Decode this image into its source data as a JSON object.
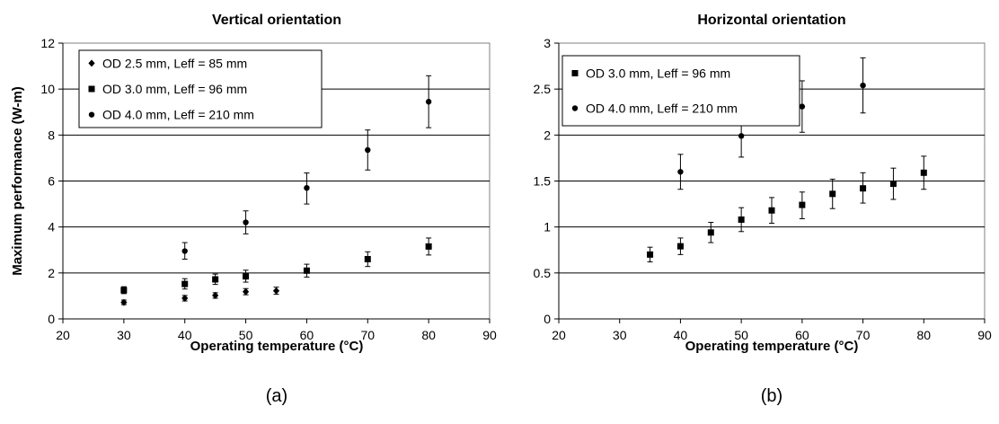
{
  "chart_data": [
    {
      "type": "scatter",
      "title": "Vertical orientation",
      "xlabel": "Operating temperature (°C)",
      "ylabel": "Maximum performance (W-m)",
      "panel_label": "(a)",
      "xlim": [
        20,
        90
      ],
      "ylim": [
        0,
        12
      ],
      "xticks": [
        "20",
        "30",
        "40",
        "50",
        "60",
        "70",
        "80",
        "90"
      ],
      "yticks": [
        "0",
        "2",
        "4",
        "6",
        "8",
        "10",
        "12"
      ],
      "grid": "horizontal",
      "legend_position": "top-left",
      "series": [
        {
          "name": "OD 2.5 mm, Leff = 85 mm",
          "marker": "diamond",
          "points": [
            {
              "x": 30,
              "y": 0.72,
              "lo": 0.62,
              "hi": 0.82
            },
            {
              "x": 40,
              "y": 0.9,
              "lo": 0.78,
              "hi": 1.02
            },
            {
              "x": 45,
              "y": 1.02,
              "lo": 0.9,
              "hi": 1.14
            },
            {
              "x": 50,
              "y": 1.18,
              "lo": 1.05,
              "hi": 1.32
            },
            {
              "x": 55,
              "y": 1.22,
              "lo": 1.07,
              "hi": 1.38
            }
          ]
        },
        {
          "name": "OD 3.0 mm, Leff = 96 mm",
          "marker": "square",
          "points": [
            {
              "x": 30,
              "y": 1.25,
              "lo": 1.1,
              "hi": 1.4
            },
            {
              "x": 40,
              "y": 1.52,
              "lo": 1.3,
              "hi": 1.75
            },
            {
              "x": 45,
              "y": 1.72,
              "lo": 1.5,
              "hi": 1.95
            },
            {
              "x": 50,
              "y": 1.85,
              "lo": 1.6,
              "hi": 2.12
            },
            {
              "x": 60,
              "y": 2.1,
              "lo": 1.82,
              "hi": 2.38
            },
            {
              "x": 70,
              "y": 2.6,
              "lo": 2.28,
              "hi": 2.92
            },
            {
              "x": 80,
              "y": 3.15,
              "lo": 2.78,
              "hi": 3.52
            }
          ]
        },
        {
          "name": "OD 4.0 mm, Leff = 210 mm",
          "marker": "circle",
          "points": [
            {
              "x": 40,
              "y": 2.95,
              "lo": 2.6,
              "hi": 3.32
            },
            {
              "x": 50,
              "y": 4.2,
              "lo": 3.7,
              "hi": 4.7
            },
            {
              "x": 60,
              "y": 5.7,
              "lo": 5.0,
              "hi": 6.35
            },
            {
              "x": 70,
              "y": 7.35,
              "lo": 6.48,
              "hi": 8.22
            },
            {
              "x": 80,
              "y": 9.45,
              "lo": 8.32,
              "hi": 10.58
            }
          ]
        }
      ]
    },
    {
      "type": "scatter",
      "title": "Horizontal orientation",
      "xlabel": "Operating temperature (°C)",
      "ylabel": "",
      "panel_label": "(b)",
      "xlim": [
        20,
        90
      ],
      "ylim": [
        0,
        3
      ],
      "xticks": [
        "20",
        "30",
        "40",
        "50",
        "60",
        "70",
        "80",
        "90"
      ],
      "yticks": [
        "0",
        "0.5",
        "1",
        "1.5",
        "2",
        "2.5",
        "3"
      ],
      "grid": "horizontal",
      "legend_position": "top-left",
      "series": [
        {
          "name": "OD 3.0 mm, Leff = 96 mm",
          "marker": "square",
          "points": [
            {
              "x": 35,
              "y": 0.7,
              "lo": 0.62,
              "hi": 0.78
            },
            {
              "x": 40,
              "y": 0.79,
              "lo": 0.7,
              "hi": 0.88
            },
            {
              "x": 45,
              "y": 0.94,
              "lo": 0.83,
              "hi": 1.05
            },
            {
              "x": 50,
              "y": 1.08,
              "lo": 0.95,
              "hi": 1.21
            },
            {
              "x": 55,
              "y": 1.18,
              "lo": 1.04,
              "hi": 1.32
            },
            {
              "x": 60,
              "y": 1.24,
              "lo": 1.09,
              "hi": 1.38
            },
            {
              "x": 65,
              "y": 1.36,
              "lo": 1.2,
              "hi": 1.52
            },
            {
              "x": 70,
              "y": 1.42,
              "lo": 1.26,
              "hi": 1.59
            },
            {
              "x": 75,
              "y": 1.47,
              "lo": 1.3,
              "hi": 1.64
            },
            {
              "x": 80,
              "y": 1.59,
              "lo": 1.41,
              "hi": 1.77
            }
          ]
        },
        {
          "name": "OD 4.0 mm, Leff = 210 mm",
          "marker": "circle",
          "points": [
            {
              "x": 40,
              "y": 1.6,
              "lo": 1.41,
              "hi": 1.79
            },
            {
              "x": 50,
              "y": 1.99,
              "lo": 1.76,
              "hi": 2.23
            },
            {
              "x": 60,
              "y": 2.31,
              "lo": 2.03,
              "hi": 2.59
            },
            {
              "x": 70,
              "y": 2.54,
              "lo": 2.24,
              "hi": 2.84
            }
          ]
        }
      ]
    }
  ]
}
